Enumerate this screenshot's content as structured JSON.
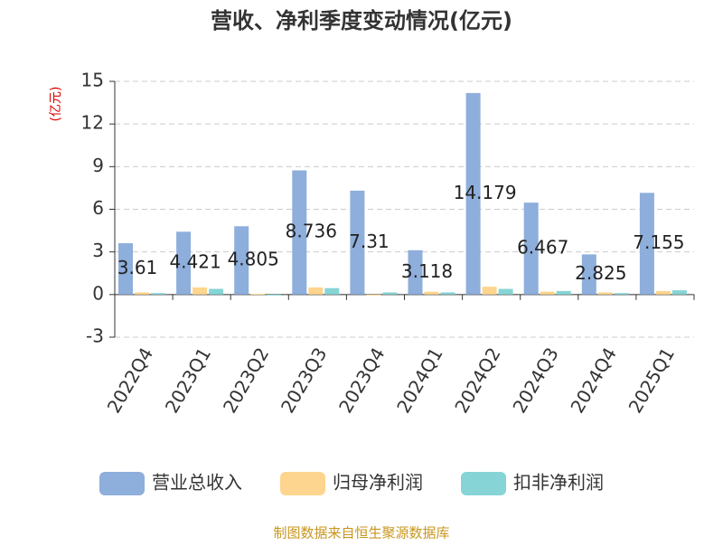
{
  "chart_data": {
    "type": "bar",
    "title": "营收、净利季度变动情况(亿元)",
    "y_label": "(亿元)",
    "categories": [
      "2022Q4",
      "2023Q1",
      "2023Q2",
      "2023Q3",
      "2023Q4",
      "2024Q1",
      "2024Q2",
      "2024Q3",
      "2024Q4",
      "2025Q1"
    ],
    "series": [
      {
        "name": "营业总收入",
        "color": "#8eaedb",
        "values": [
          3.61,
          4.421,
          4.805,
          8.736,
          7.31,
          3.118,
          14.179,
          6.467,
          2.825,
          7.155
        ],
        "show_labels": true
      },
      {
        "name": "归母净利润",
        "color": "#fdd58e",
        "values": [
          0.15,
          0.5,
          0.05,
          0.5,
          -0.05,
          0.2,
          0.55,
          0.2,
          0.15,
          0.25
        ]
      },
      {
        "name": "扣非净利润",
        "color": "#86d4d6",
        "values": [
          0.1,
          0.4,
          -0.05,
          0.45,
          0.15,
          0.15,
          0.4,
          0.25,
          0.1,
          0.3
        ]
      }
    ],
    "ylim": [
      -3,
      15
    ],
    "yticks": [
      15,
      12,
      9,
      6,
      3,
      0,
      -3
    ],
    "grid": true,
    "source": "制图数据来自恒生聚源数据库"
  }
}
